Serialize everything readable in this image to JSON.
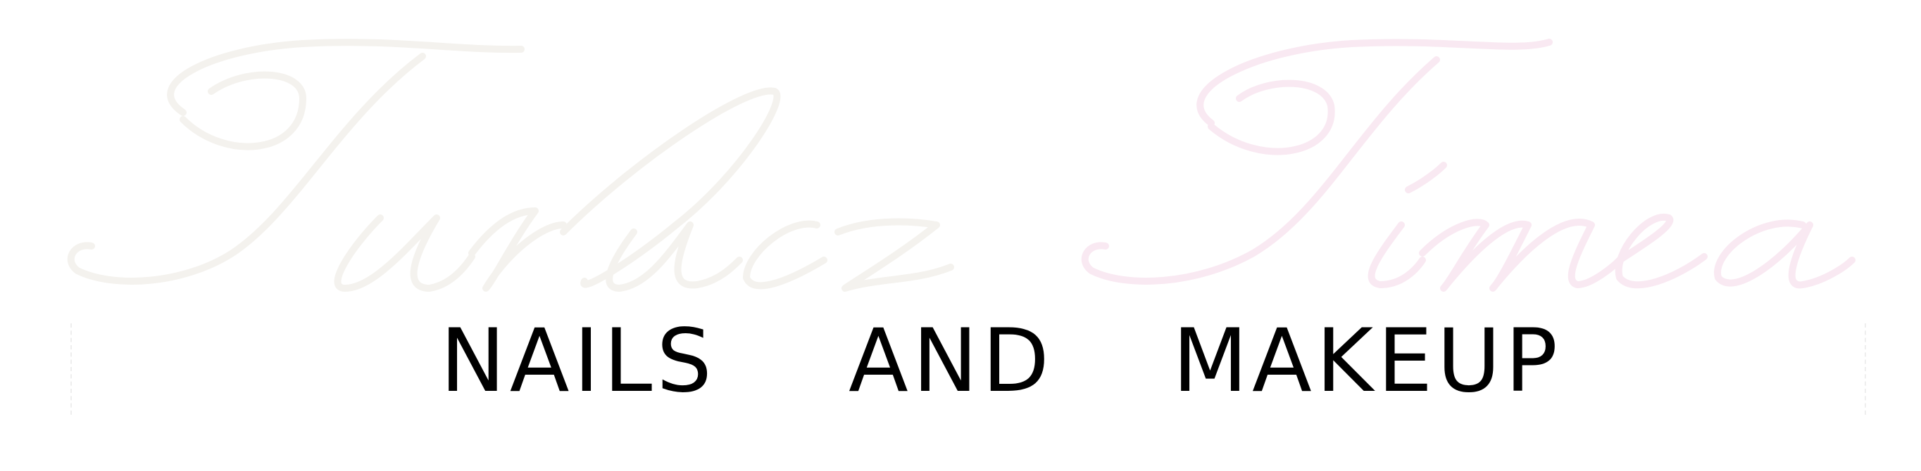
{
  "brand": {
    "logo_text": "Turlucz Tímea",
    "logo_color_first": "#f7f5f2",
    "logo_color_second": "#fbeef5",
    "tagline": [
      "NAILS",
      "AND",
      "MAKEUP"
    ],
    "tagline_color": "#000000"
  }
}
